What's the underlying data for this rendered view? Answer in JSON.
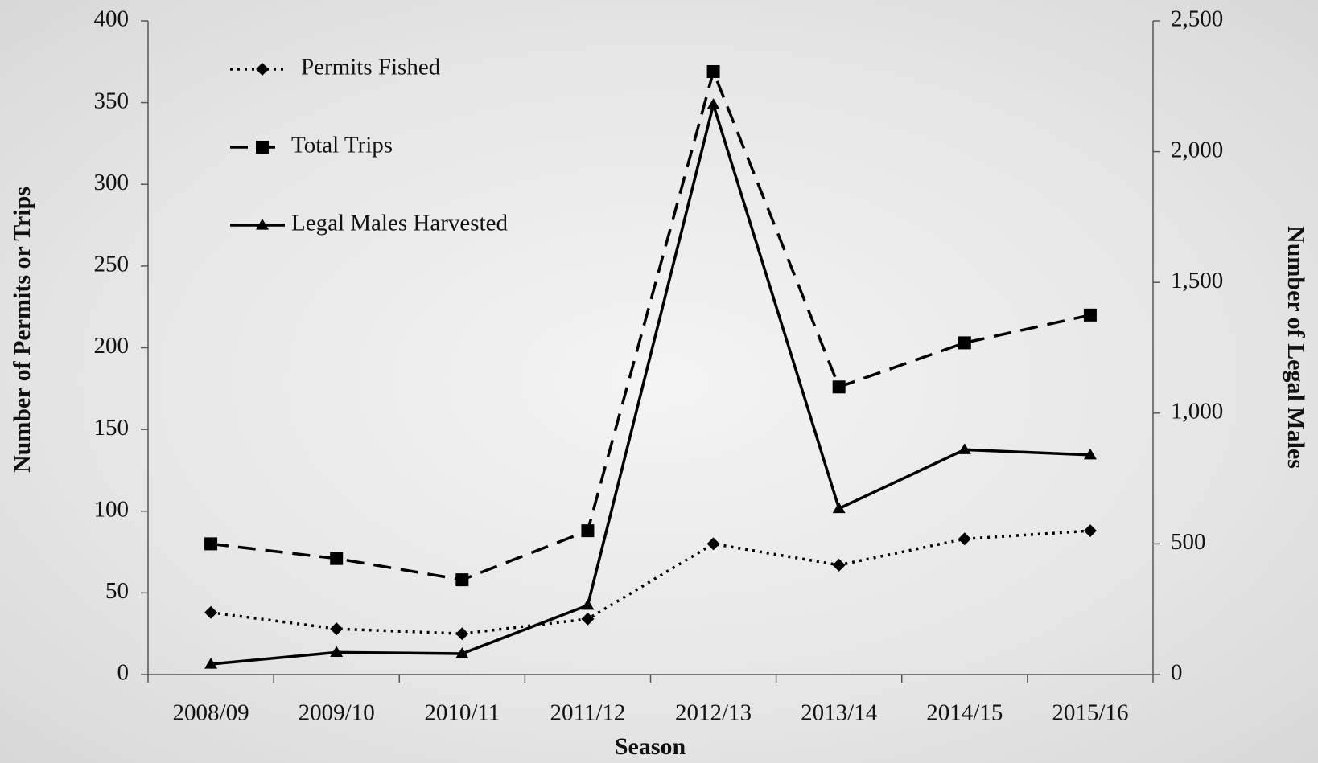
{
  "chart_data": {
    "type": "line",
    "xlabel": "Season",
    "ylabel": "Number of Permits or Trips",
    "y2label": "Number of Legal Males",
    "categories": [
      "2008/09",
      "2009/10",
      "2010/11",
      "2011/12",
      "2012/13",
      "2013/14",
      "2014/15",
      "2015/16"
    ],
    "series": [
      {
        "name": "Permits Fished",
        "color": "#000000",
        "dash": "dotted",
        "marker": "diamond",
        "values": [
          38,
          28,
          25,
          34,
          80,
          67,
          83,
          88
        ]
      },
      {
        "name": "Total Trips",
        "color": "#000000",
        "dash": "dashed",
        "marker": "square",
        "values": [
          80,
          71,
          58,
          88,
          369,
          176,
          203,
          220
        ]
      },
      {
        "name": "Legal Males Harvested",
        "color": "#000000",
        "dash": "solid",
        "marker": "triangle",
        "axis": "y2",
        "values": [
          40,
          85,
          80,
          265,
          2180,
          635,
          860,
          840
        ]
      }
    ],
    "ylim": [
      0,
      400
    ],
    "yticks": [
      0,
      50,
      100,
      150,
      200,
      250,
      300,
      350,
      400
    ],
    "y2lim": [
      0,
      2500
    ],
    "y2ticks": [
      0,
      500,
      {
        "value": 1000,
        "label": "1,000"
      },
      {
        "value": 1500,
        "label": "1,500"
      },
      {
        "value": 2000,
        "label": "2,000"
      },
      {
        "value": 2500,
        "label": "2,500"
      }
    ],
    "grid": false,
    "legend": "upper left"
  }
}
